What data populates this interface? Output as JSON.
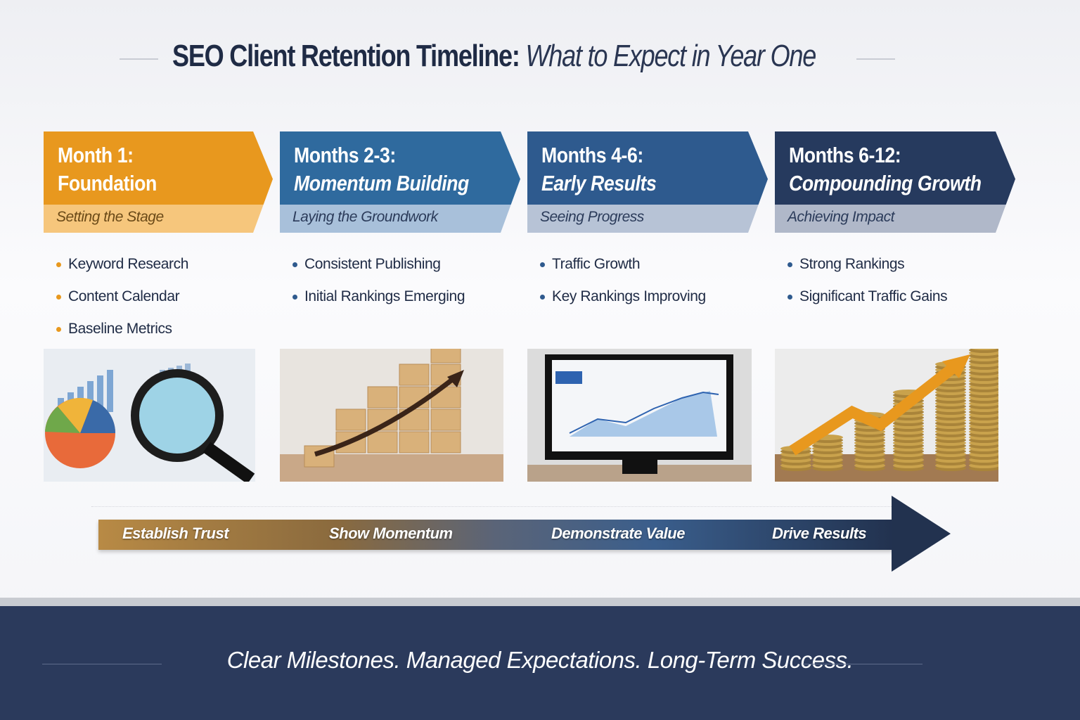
{
  "title": {
    "bold": "SEO Client Retention Timeline:",
    "italic": "What to Expect in Year One"
  },
  "phases": [
    {
      "period": "Month 1:",
      "name": "Foundation",
      "subtitle": "Setting the Stage",
      "items": [
        "Keyword Research",
        "Content Calendar",
        "Baseline Metrics"
      ],
      "color": "#e8981e",
      "sub_color": "#f6c67c",
      "image": "magnifying-glass-over-charts"
    },
    {
      "period": "Months 2-3:",
      "name": "Momentum Building",
      "subtitle": "Laying the Groundwork",
      "items": [
        "Consistent Publishing",
        "Initial Rankings Emerging"
      ],
      "color": "#2f6a9e",
      "sub_color": "#a8c0da",
      "image": "wooden-blocks-staircase-arrow"
    },
    {
      "period": "Months 4-6:",
      "name": "Early Results",
      "subtitle": "Seeing Progress",
      "items": [
        "Traffic Growth",
        "Key Rankings Improving"
      ],
      "color": "#2e5a8e",
      "sub_color": "#b7c3d6",
      "image": "monitor-analytics-dashboard"
    },
    {
      "period": "Months 6-12:",
      "name": "Compounding Growth",
      "subtitle": "Achieving Impact",
      "items": [
        "Strong Rankings",
        "Significant Traffic Gains"
      ],
      "color": "#263a5e",
      "sub_color": "#b0b8c9",
      "image": "coin-stacks-rising-arrow"
    }
  ],
  "progress": [
    "Establish Trust",
    "Show Momentum",
    "Demonstrate Value",
    "Drive Results"
  ],
  "footer": {
    "tagline": "Clear Milestones. Managed Expectations. Long-Term Success."
  }
}
